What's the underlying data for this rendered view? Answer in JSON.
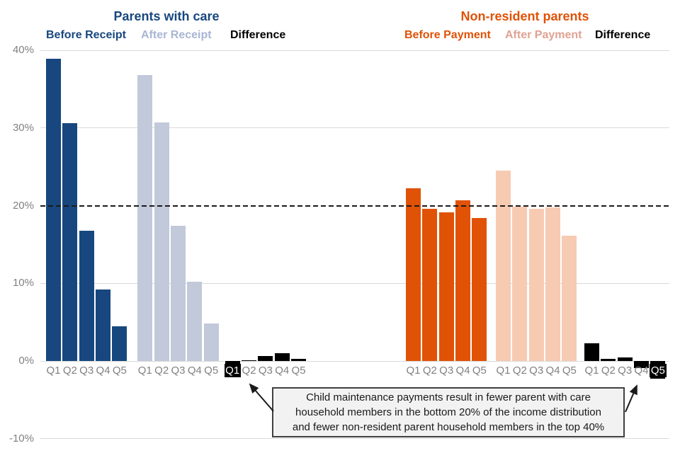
{
  "chart_data": {
    "type": "bar",
    "unit": "%",
    "categories": [
      "Q1",
      "Q2",
      "Q3",
      "Q4",
      "Q5"
    ],
    "ylim": [
      -10,
      40
    ],
    "yticks": [
      {
        "label": "40%",
        "value": 40
      },
      {
        "label": "30%",
        "value": 30
      },
      {
        "label": "20%",
        "value": 20
      },
      {
        "label": "10%",
        "value": 10
      },
      {
        "label": "0%",
        "value": 0
      },
      {
        "label": "-10%",
        "value": -10
      }
    ],
    "reference_line": {
      "value": 20,
      "style": "dashed",
      "color": "#1a1a1a"
    },
    "grid": "horizontal-light-gray",
    "axis_text_color": "#808080",
    "gridline_color": "#D9D9D9",
    "panels": [
      {
        "title": "Parents with care",
        "title_color": "#17477E",
        "series": [
          {
            "name": "Before Receipt",
            "color": "#17477E",
            "values": [
              38.9,
              30.6,
              16.8,
              9.2,
              4.5
            ]
          },
          {
            "name": "After Receipt",
            "color": "#C1C9DA",
            "legend_color": "#A9B6D4",
            "values": [
              36.8,
              30.7,
              17.4,
              10.2,
              4.8
            ]
          },
          {
            "name": "Difference",
            "color": "#000000",
            "values": [
              -2.1,
              0.1,
              0.6,
              1.0,
              0.3
            ],
            "highlighted_label": "Q1"
          }
        ]
      },
      {
        "title": "Non-resident parents",
        "title_color": "#E05206",
        "series": [
          {
            "name": "Before Payment",
            "color": "#E05206",
            "values": [
              22.2,
              19.6,
              19.1,
              20.7,
              18.4
            ]
          },
          {
            "name": "After Payment",
            "color": "#F6CBB2",
            "legend_color": "#DFA293",
            "values": [
              24.5,
              19.9,
              19.6,
              19.8,
              16.1
            ]
          },
          {
            "name": "Difference",
            "color": "#000000",
            "values": [
              2.3,
              0.3,
              0.5,
              -0.9,
              -2.3
            ],
            "highlighted_label": "Q5"
          }
        ]
      }
    ],
    "annotation": {
      "line1": "Child maintenance payments result in fewer parent with care",
      "line2": "household members in the bottom 20% of the income distribution",
      "line3": "and fewer non-resident parent household members in the top 40%"
    }
  }
}
